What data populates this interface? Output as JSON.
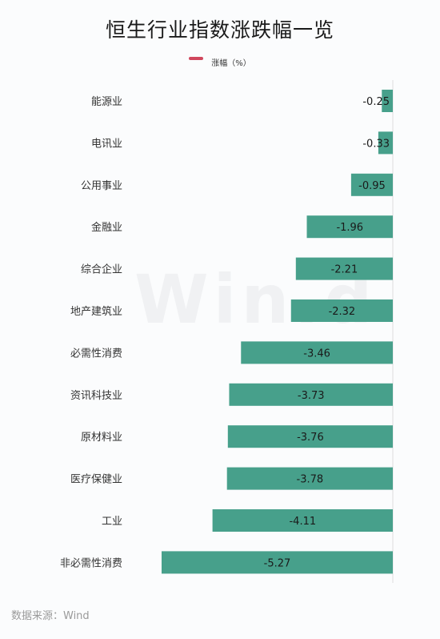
{
  "chart_data": {
    "type": "bar",
    "orientation": "horizontal",
    "title": "恒生行业指数涨跌幅一览",
    "legend": {
      "label": "涨幅（%）",
      "placement": "top-center"
    },
    "categories": [
      "能源业",
      "电讯业",
      "公用事业",
      "金融业",
      "综合企业",
      "地产建筑业",
      "必需性消费",
      "资讯科技业",
      "原材料业",
      "医疗保健业",
      "工业",
      "非必需性消费"
    ],
    "series": [
      {
        "name": "涨幅（%）",
        "values": [
          -0.25,
          -0.33,
          -0.95,
          -1.96,
          -2.21,
          -2.32,
          -3.46,
          -3.73,
          -3.76,
          -3.78,
          -4.11,
          -5.27
        ]
      }
    ],
    "value_labels": [
      "-0.25",
      "-0.33",
      "-0.95",
      "-1.96",
      "-2.21",
      "-2.32",
      "-3.46",
      "-3.73",
      "-3.76",
      "-3.78",
      "-4.11",
      "-5.27"
    ],
    "xlim": [
      -5.27,
      0
    ],
    "grid": false
  },
  "colors": {
    "bar": "#47a08b",
    "legend": "#d0475d",
    "axis": "#dddddd"
  },
  "watermark": "Win.d",
  "source": "数据来源：Wind"
}
